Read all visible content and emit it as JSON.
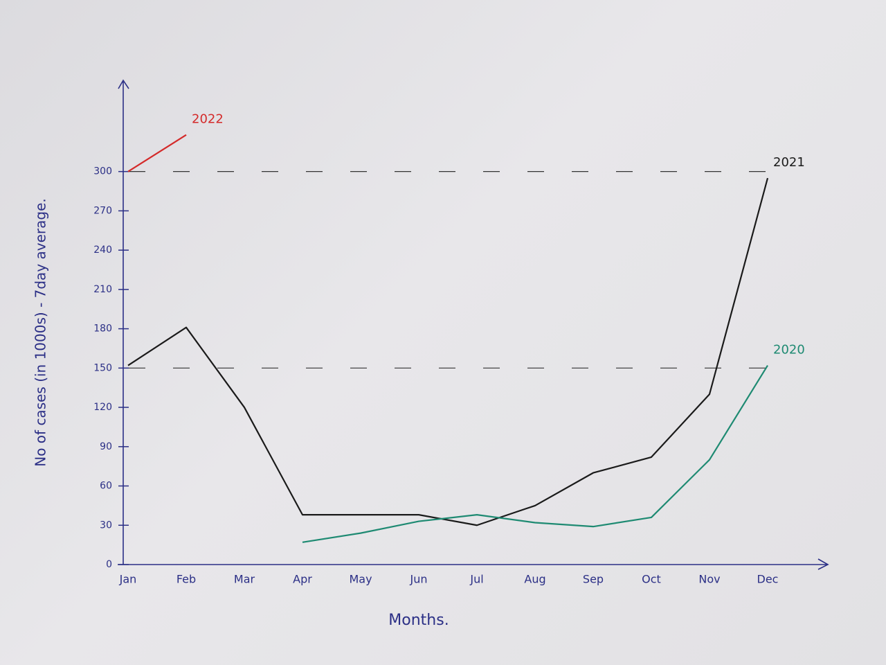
{
  "chart_data": {
    "type": "line",
    "x_label": "Months.",
    "y_label": "No of cases (in 1000s) - 7day average.",
    "categories": [
      "Jan",
      "Feb",
      "Mar",
      "Apr",
      "May",
      "Jun",
      "Jul",
      "Aug",
      "Sep",
      "Oct",
      "Nov",
      "Dec"
    ],
    "series": [
      {
        "name": "2022",
        "color": "#d42a2a",
        "values": [
          300,
          328,
          null,
          null,
          null,
          null,
          null,
          null,
          null,
          null,
          null,
          null
        ]
      },
      {
        "name": "2021",
        "color": "#1a1a1a",
        "values": [
          152,
          181,
          120,
          38,
          38,
          38,
          30,
          45,
          70,
          82,
          130,
          295
        ]
      },
      {
        "name": "2020",
        "color": "#1e8a72",
        "values": [
          null,
          null,
          null,
          17,
          24,
          33,
          38,
          32,
          29,
          36,
          80,
          152
        ]
      }
    ],
    "ylim": [
      0,
      340
    ],
    "yticks": [
      0,
      30,
      60,
      90,
      120,
      150,
      180,
      210,
      240,
      270,
      300
    ],
    "reference_lines": [
      150,
      300
    ]
  }
}
